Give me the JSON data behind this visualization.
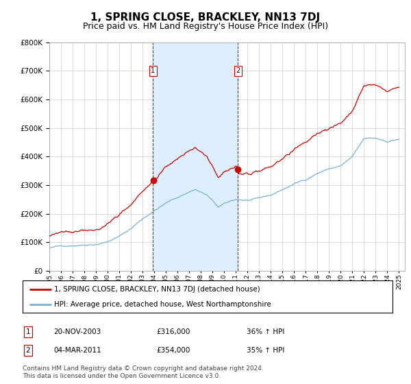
{
  "title": "1, SPRING CLOSE, BRACKLEY, NN13 7DJ",
  "subtitle": "Price paid vs. HM Land Registry's House Price Index (HPI)",
  "title_fontsize": 11,
  "subtitle_fontsize": 9,
  "background_color": "#ffffff",
  "plot_bg_color": "#ffffff",
  "grid_color": "#cccccc",
  "purchase1_date": 2003.9,
  "purchase1_price": 316000,
  "purchase2_date": 2011.17,
  "purchase2_price": 354000,
  "red_line_color": "#cc0000",
  "blue_line_color": "#7ab0d4",
  "highlight_fill": "#ddeeff",
  "dashed_line_color": "#cc0000",
  "xmin": 1995.0,
  "xmax": 2025.5,
  "ymin": 0,
  "ymax": 800000,
  "ytick_interval": 100000,
  "legend_red": "1, SPRING CLOSE, BRACKLEY, NN13 7DJ (detached house)",
  "legend_blue": "HPI: Average price, detached house, West Northamptonshire",
  "table_row1_num": "1",
  "table_row1_date": "20-NOV-2003",
  "table_row1_price": "£316,000",
  "table_row1_hpi": "36% ↑ HPI",
  "table_row2_num": "2",
  "table_row2_date": "04-MAR-2011",
  "table_row2_price": "£354,000",
  "table_row2_hpi": "35% ↑ HPI",
  "footer": "Contains HM Land Registry data © Crown copyright and database right 2024.\nThis data is licensed under the Open Government Licence v3.0."
}
